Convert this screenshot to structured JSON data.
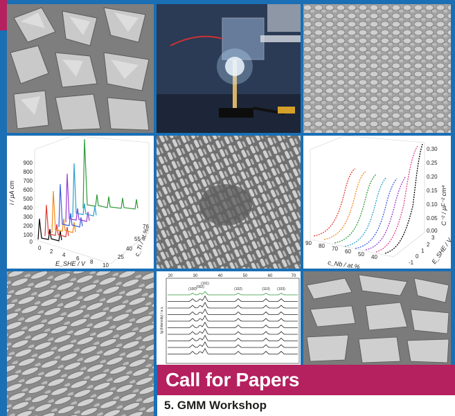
{
  "banner": {
    "title": "Call for Papers"
  },
  "footer": {
    "subtitle": "5. GMM Workshop"
  },
  "colors": {
    "frame_blue": "#1a6fb5",
    "accent_magenta": "#b5205f",
    "text_dark": "#1d1d1b"
  },
  "tiles": [
    {
      "name": "sem-crystal-facets",
      "kind": "micrograph"
    },
    {
      "name": "electrochemical-cell-photo",
      "kind": "photo"
    },
    {
      "name": "sem-fine-grains",
      "kind": "micrograph"
    },
    {
      "name": "current-density-3d-plot",
      "kind": "chart"
    },
    {
      "name": "sem-nanorods",
      "kind": "micrograph"
    },
    {
      "name": "mott-schottky-3d-plot",
      "kind": "chart"
    },
    {
      "name": "sem-elongated-grains",
      "kind": "micrograph"
    },
    {
      "name": "xrd-pattern-plot",
      "kind": "chart"
    },
    {
      "name": "sem-flakes",
      "kind": "micrograph"
    }
  ],
  "plot_left": {
    "ylabel": "i / µA cm",
    "xlabel": "E_SHE / V",
    "zlabel": "c_Ti / at.%",
    "y_ticks": [
      "900",
      "800",
      "700",
      "600",
      "500",
      "400",
      "300",
      "200",
      "100",
      "0"
    ],
    "x_ticks": [
      "0",
      "2",
      "4",
      "6",
      "8",
      "10"
    ],
    "z_ticks": [
      "25",
      "40",
      "55",
      "76"
    ]
  },
  "plot_right": {
    "zlabel": "C⁻² / µF⁻² cm⁴",
    "xlabel": "c_Nb / at.%",
    "ylabel": "E_SHE / V",
    "z_ticks": [
      "0.30",
      "0.25",
      "0.20",
      "0.15",
      "0.10",
      "0.05",
      "0.00"
    ],
    "x_ticks": [
      "90",
      "80",
      "70",
      "60",
      "50",
      "40"
    ],
    "y_ticks": [
      "3",
      "2",
      "1",
      "0",
      "-1"
    ]
  },
  "plot_xrd": {
    "top_ticks": [
      "20",
      "30",
      "40",
      "50",
      "60",
      "70"
    ],
    "ylabel": "lg (Intensity) / a.u.",
    "peak_labels": [
      "(100)",
      "(002)",
      "(101)",
      "(102)",
      "(110)",
      "(103)"
    ]
  }
}
